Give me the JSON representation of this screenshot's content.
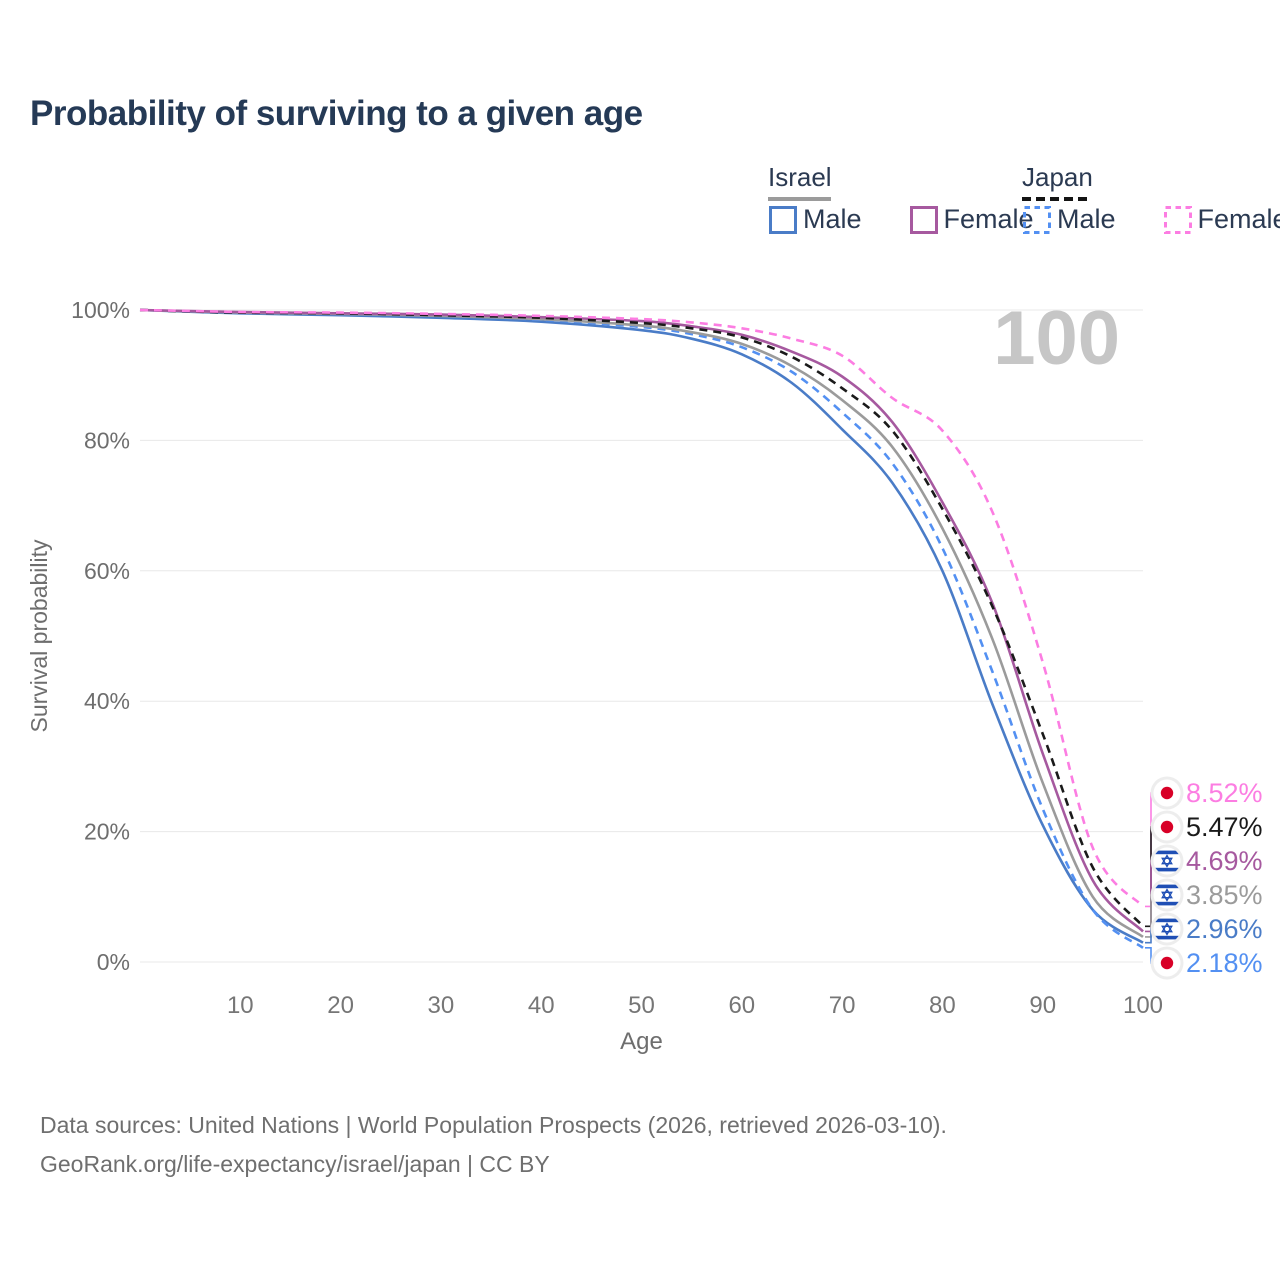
{
  "title": "Probability of surviving to a given age",
  "legend": {
    "groups": [
      {
        "label": "Israel",
        "underline_style": "solid",
        "underline_series": 2,
        "items": [
          {
            "label": "Male",
            "series": 0
          },
          {
            "label": "Female",
            "series": 3
          }
        ]
      },
      {
        "label": "Japan",
        "underline_style": "dashed",
        "underline_series": 4,
        "items": [
          {
            "label": "Male",
            "series": 1
          },
          {
            "label": "Female",
            "series": 5
          }
        ]
      }
    ]
  },
  "watermark": "100",
  "chart_data": {
    "type": "line",
    "title": "Probability of surviving to a given age",
    "xlabel": "Age",
    "ylabel": "Survival probability",
    "xlim": [
      0,
      100
    ],
    "ylim": [
      0,
      100
    ],
    "grid": "horizontal",
    "x_ticks": [
      10,
      20,
      30,
      40,
      50,
      60,
      70,
      80,
      90,
      100
    ],
    "x_tick_labels": [
      "10",
      "20",
      "30",
      "40",
      "50",
      "60",
      "70",
      "80",
      "90",
      "100"
    ],
    "y_ticks": [
      0,
      20,
      40,
      60,
      80,
      100
    ],
    "y_tick_labels": [
      "0%",
      "20%",
      "40%",
      "60%",
      "80%",
      "100%"
    ],
    "x": [
      0,
      10,
      20,
      30,
      40,
      50,
      55,
      60,
      65,
      70,
      75,
      80,
      85,
      90,
      95,
      100
    ],
    "series": [
      {
        "name": "Israel Male",
        "country": "israel",
        "style": "solid",
        "color": "#4a7cc7",
        "end_label": "2.96%",
        "values": [
          100,
          99.5,
          99.2,
          98.8,
          98.2,
          96.9,
          95.6,
          93.2,
          88.8,
          81.7,
          73.5,
          60.0,
          39.5,
          21.0,
          8.0,
          2.96
        ]
      },
      {
        "name": "Japan Male",
        "country": "japan",
        "style": "dashed",
        "color": "#5390f2",
        "end_label": "2.18%",
        "values": [
          100,
          99.6,
          99.4,
          99.1,
          98.5,
          97.4,
          96.3,
          94.3,
          90.5,
          84.3,
          76.5,
          63.5,
          44.5,
          23.5,
          8.0,
          2.18
        ]
      },
      {
        "name": "Israel Total",
        "country": "israel",
        "style": "solid",
        "color": "#9b9b9b",
        "end_label": "3.85%",
        "values": [
          100,
          99.6,
          99.4,
          99.1,
          98.6,
          97.6,
          96.6,
          94.8,
          91.4,
          86.2,
          79.0,
          66.5,
          49.5,
          27.5,
          10.0,
          3.85
        ]
      },
      {
        "name": "Israel Female",
        "country": "israel",
        "style": "solid",
        "color": "#a6599f",
        "end_label": "4.69%",
        "values": [
          100,
          99.7,
          99.5,
          99.3,
          98.9,
          98.3,
          97.5,
          96.2,
          93.6,
          89.8,
          82.8,
          70.5,
          55.0,
          32.0,
          12.5,
          4.69
        ]
      },
      {
        "name": "Japan Total",
        "country": "japan",
        "style": "dashed",
        "color": "#1a1a1a",
        "end_label": "5.47%",
        "values": [
          100,
          99.6,
          99.5,
          99.2,
          98.8,
          98.0,
          97.2,
          95.8,
          92.8,
          88.0,
          81.5,
          69.5,
          54.5,
          35.0,
          14.5,
          5.47
        ]
      },
      {
        "name": "Japan Female",
        "country": "japan",
        "style": "dashed",
        "color": "#fc7de2",
        "end_label": "8.52%",
        "values": [
          100,
          99.7,
          99.6,
          99.4,
          99.1,
          98.6,
          98.1,
          97.2,
          95.6,
          93.0,
          86.5,
          81.5,
          69.0,
          46.0,
          17.5,
          8.52
        ]
      }
    ]
  },
  "footer": {
    "line1": "Data sources: United Nations | World Population Prospects (2026, retrieved 2026-03-10).",
    "line2": "GeoRank.org/life-expectancy/israel/japan | CC BY"
  }
}
